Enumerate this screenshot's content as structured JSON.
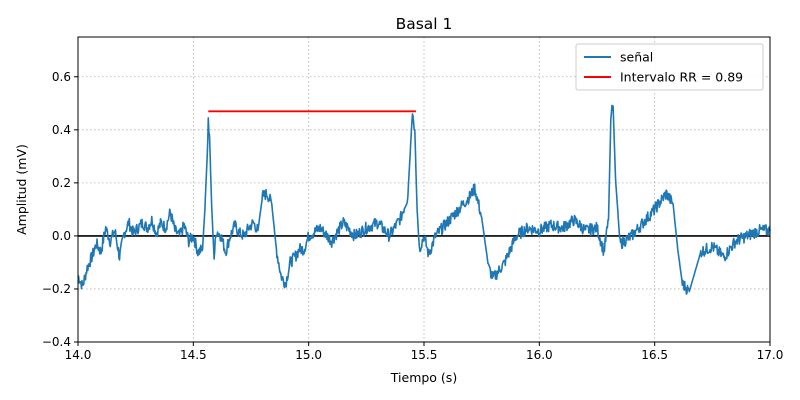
{
  "chart_data": {
    "type": "line",
    "title": "Basal 1",
    "xlabel": "Tiempo (s)",
    "ylabel": "Amplitud (mV)",
    "xlim": [
      14.0,
      17.0
    ],
    "ylim": [
      -0.4,
      0.75
    ],
    "x_ticks": [
      14.0,
      14.5,
      15.0,
      15.5,
      16.0,
      16.5,
      17.0
    ],
    "x_tick_labels": [
      "14.0",
      "14.5",
      "15.0",
      "15.5",
      "16.0",
      "16.5",
      "17.0"
    ],
    "y_ticks": [
      -0.4,
      -0.2,
      0.0,
      0.2,
      0.4,
      0.6
    ],
    "y_tick_labels": [
      "−0.4",
      "−0.2",
      "0.0",
      "0.2",
      "0.4",
      "0.6"
    ],
    "grid": true,
    "legend_position": "top-right",
    "baseline": {
      "y": 0.0,
      "color": "#000000"
    },
    "series": [
      {
        "name": "señal",
        "color": "#1f77b4",
        "x": [
          14.0,
          14.02,
          14.04,
          14.06,
          14.08,
          14.1,
          14.12,
          14.14,
          14.16,
          14.18,
          14.2,
          14.22,
          14.24,
          14.26,
          14.28,
          14.3,
          14.32,
          14.34,
          14.36,
          14.38,
          14.4,
          14.42,
          14.44,
          14.46,
          14.48,
          14.5,
          14.52,
          14.54,
          14.55,
          14.56,
          14.565,
          14.57,
          14.58,
          14.59,
          14.6,
          14.62,
          14.64,
          14.66,
          14.68,
          14.7,
          14.72,
          14.74,
          14.76,
          14.78,
          14.8,
          14.82,
          14.84,
          14.86,
          14.88,
          14.9,
          14.92,
          14.94,
          14.96,
          14.98,
          15.0,
          15.05,
          15.1,
          15.15,
          15.2,
          15.25,
          15.3,
          15.35,
          15.4,
          15.43,
          15.45,
          15.46,
          15.47,
          15.48,
          15.5,
          15.52,
          15.55,
          15.6,
          15.65,
          15.7,
          15.72,
          15.75,
          15.78,
          15.8,
          15.85,
          15.9,
          15.95,
          16.0,
          16.05,
          16.1,
          16.15,
          16.2,
          16.25,
          16.28,
          16.3,
          16.31,
          16.32,
          16.33,
          16.35,
          16.4,
          16.45,
          16.5,
          16.55,
          16.58,
          16.6,
          16.62,
          16.65,
          16.7,
          16.75,
          16.8,
          16.85,
          16.9,
          16.95,
          17.0
        ],
        "y": [
          -0.15,
          -0.19,
          -0.12,
          -0.08,
          -0.03,
          -0.06,
          0.03,
          -0.02,
          0.02,
          -0.08,
          0.01,
          0.05,
          0.01,
          0.03,
          0.05,
          0.03,
          0.06,
          0.01,
          0.05,
          0.03,
          0.09,
          0.02,
          0.0,
          0.04,
          -0.02,
          0.0,
          -0.06,
          -0.05,
          0.1,
          0.3,
          0.43,
          0.38,
          0.1,
          -0.08,
          0.02,
          0.0,
          -0.06,
          0.0,
          0.04,
          0.01,
          0.0,
          0.03,
          0.05,
          0.02,
          0.15,
          0.16,
          0.12,
          -0.05,
          -0.15,
          -0.18,
          -0.1,
          -0.08,
          -0.05,
          -0.05,
          0.0,
          0.03,
          -0.02,
          0.05,
          0.0,
          0.03,
          0.05,
          0.0,
          0.07,
          0.15,
          0.47,
          0.4,
          0.1,
          -0.05,
          0.0,
          -0.07,
          0.0,
          0.05,
          0.1,
          0.15,
          0.18,
          0.07,
          -0.12,
          -0.16,
          -0.1,
          0.0,
          0.03,
          0.02,
          0.04,
          0.03,
          0.06,
          0.02,
          0.03,
          -0.06,
          0.06,
          0.45,
          0.49,
          0.22,
          -0.03,
          0.0,
          0.05,
          0.1,
          0.16,
          0.12,
          -0.05,
          -0.18,
          -0.21,
          -0.06,
          -0.04,
          -0.08,
          -0.02,
          0.0,
          0.02,
          0.02
        ]
      },
      {
        "name": "Intervalo RR = 0.89",
        "color": "#ff0000",
        "x": [
          14.565,
          15.465
        ],
        "y": [
          0.47,
          0.47
        ]
      }
    ]
  }
}
